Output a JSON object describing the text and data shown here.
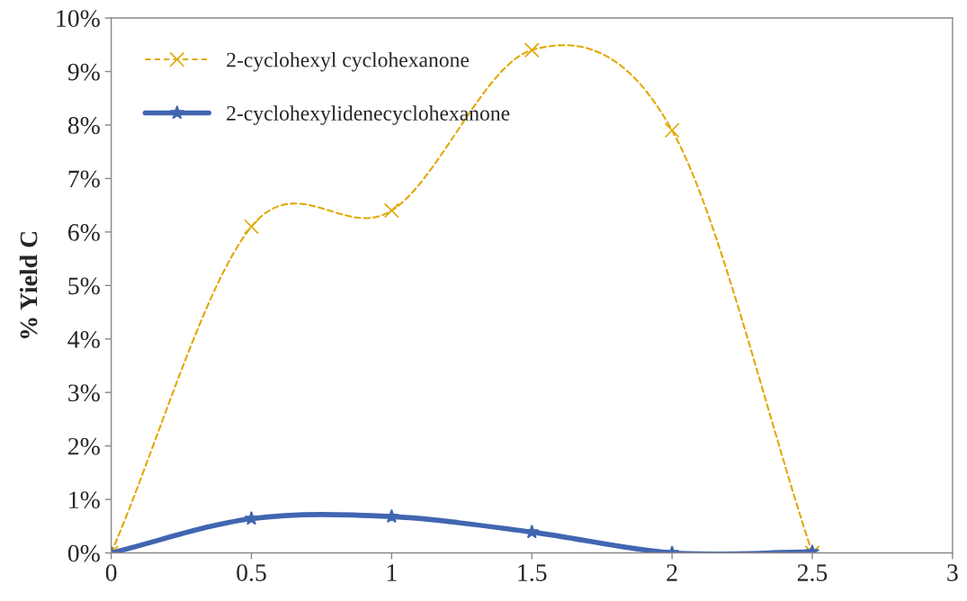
{
  "chart_data": {
    "type": "line",
    "ylabel": "% Yield C",
    "x": [
      0,
      0.5,
      1,
      1.5,
      2,
      2.5
    ],
    "series": [
      {
        "name": "2-cyclohexyl cyclohexanone",
        "color": "#e0a800",
        "values": [
          0,
          6.1,
          6.4,
          9.4,
          7.9,
          0
        ],
        "marker": "cross",
        "line_style": "dashed"
      },
      {
        "name": "2-cyclohexylidenecyclohexanone",
        "color": "#4166b0",
        "values": [
          0,
          0.64,
          0.68,
          0.39,
          0,
          0.02
        ],
        "marker": "star",
        "line_style": "solid"
      }
    ],
    "xlim": [
      0,
      3
    ],
    "xticks": [
      0,
      0.5,
      1,
      1.5,
      2,
      2.5,
      3
    ],
    "ylim": [
      0,
      10
    ],
    "yticks": [
      {
        "value": 0,
        "label": "0%"
      },
      {
        "value": 1,
        "label": "1%"
      },
      {
        "value": 2,
        "label": "2%"
      },
      {
        "value": 3,
        "label": "3%"
      },
      {
        "value": 4,
        "label": "4%"
      },
      {
        "value": 5,
        "label": "5%"
      },
      {
        "value": 6,
        "label": "6%"
      },
      {
        "value": 7,
        "label": "7%"
      },
      {
        "value": 8,
        "label": "8%"
      },
      {
        "value": 9,
        "label": "9%"
      },
      {
        "value": 10,
        "label": "10%"
      }
    ],
    "legend": "top left",
    "grid": false
  }
}
